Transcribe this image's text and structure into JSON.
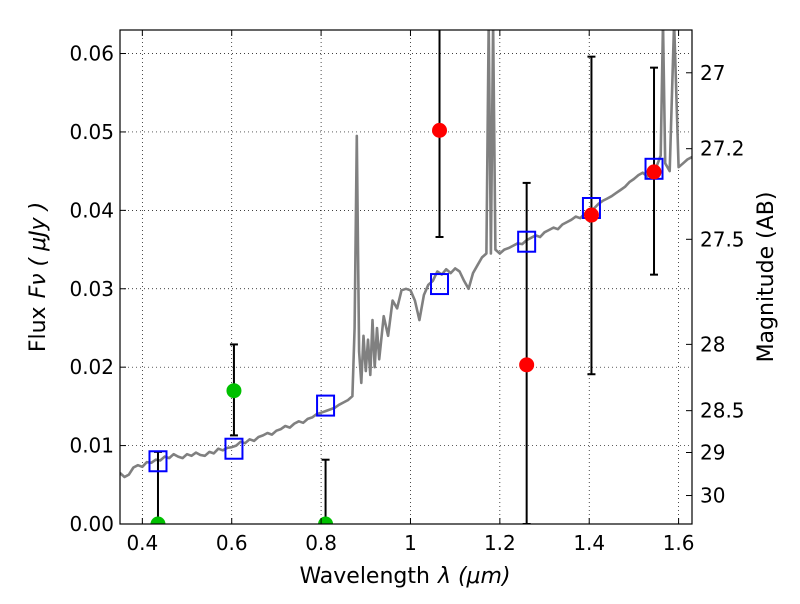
{
  "chart_data": {
    "type": "scatter",
    "title": "",
    "xlabel": "Wavelength",
    "xlabel_math": "λ (μm)",
    "ylabel": "Flux",
    "ylabel_math": "Fν ( μJy )",
    "y2label": "Magnitude (AB)",
    "xlim": [
      0.35,
      1.63
    ],
    "ylim": [
      0.0,
      0.063
    ],
    "grid": true,
    "x_ticks": [
      {
        "value": 0.4,
        "label": "0.4"
      },
      {
        "value": 0.6,
        "label": "0.6"
      },
      {
        "value": 0.8,
        "label": "0.8"
      },
      {
        "value": 1.0,
        "label": "1"
      },
      {
        "value": 1.2,
        "label": "1.2"
      },
      {
        "value": 1.4,
        "label": "1.4"
      },
      {
        "value": 1.6,
        "label": "1.6"
      }
    ],
    "y_ticks": [
      {
        "value": 0.0,
        "label": "0.00"
      },
      {
        "value": 0.01,
        "label": "0.01"
      },
      {
        "value": 0.02,
        "label": "0.02"
      },
      {
        "value": 0.03,
        "label": "0.03"
      },
      {
        "value": 0.04,
        "label": "0.04"
      },
      {
        "value": 0.05,
        "label": "0.05"
      },
      {
        "value": 0.06,
        "label": "0.06"
      }
    ],
    "y2_ticks": [
      {
        "value": 27.0,
        "label": "27"
      },
      {
        "value": 27.2,
        "label": "27.2"
      },
      {
        "value": 27.5,
        "label": "27.5"
      },
      {
        "value": 28.0,
        "label": "28"
      },
      {
        "value": 28.5,
        "label": "28.5"
      },
      {
        "value": 29.0,
        "label": "29"
      },
      {
        "value": 30.0,
        "label": "30"
      }
    ],
    "series": [
      {
        "type": "line",
        "color": "#808080",
        "points": [
          [
            0.35,
            0.0065
          ],
          [
            0.36,
            0.006
          ],
          [
            0.37,
            0.0063
          ],
          [
            0.38,
            0.0072
          ],
          [
            0.39,
            0.0075
          ],
          [
            0.4,
            0.0073
          ],
          [
            0.41,
            0.0079
          ],
          [
            0.42,
            0.0078
          ],
          [
            0.43,
            0.0082
          ],
          [
            0.44,
            0.0081
          ],
          [
            0.45,
            0.0086
          ],
          [
            0.46,
            0.0084
          ],
          [
            0.47,
            0.0089
          ],
          [
            0.48,
            0.0086
          ],
          [
            0.49,
            0.0084
          ],
          [
            0.5,
            0.0089
          ],
          [
            0.51,
            0.0087
          ],
          [
            0.52,
            0.0091
          ],
          [
            0.53,
            0.0088
          ],
          [
            0.54,
            0.0087
          ],
          [
            0.55,
            0.0092
          ],
          [
            0.56,
            0.009
          ],
          [
            0.57,
            0.0096
          ],
          [
            0.58,
            0.0094
          ],
          [
            0.59,
            0.0097
          ],
          [
            0.6,
            0.0098
          ],
          [
            0.61,
            0.01
          ],
          [
            0.62,
            0.0105
          ],
          [
            0.63,
            0.0103
          ],
          [
            0.64,
            0.0108
          ],
          [
            0.65,
            0.0106
          ],
          [
            0.66,
            0.0111
          ],
          [
            0.67,
            0.0113
          ],
          [
            0.68,
            0.0116
          ],
          [
            0.69,
            0.0114
          ],
          [
            0.7,
            0.0119
          ],
          [
            0.71,
            0.0121
          ],
          [
            0.72,
            0.0125
          ],
          [
            0.73,
            0.0123
          ],
          [
            0.74,
            0.0128
          ],
          [
            0.75,
            0.0131
          ],
          [
            0.76,
            0.0129
          ],
          [
            0.77,
            0.0134
          ],
          [
            0.78,
            0.0136
          ],
          [
            0.79,
            0.014
          ],
          [
            0.8,
            0.0142
          ],
          [
            0.81,
            0.0144
          ],
          [
            0.82,
            0.0146
          ],
          [
            0.83,
            0.0148
          ],
          [
            0.84,
            0.0152
          ],
          [
            0.85,
            0.0155
          ],
          [
            0.86,
            0.0158
          ],
          [
            0.87,
            0.0163
          ],
          [
            0.875,
            0.025
          ],
          [
            0.88,
            0.0495
          ],
          [
            0.885,
            0.022
          ],
          [
            0.89,
            0.018
          ],
          [
            0.895,
            0.024
          ],
          [
            0.9,
            0.0195
          ],
          [
            0.905,
            0.0235
          ],
          [
            0.91,
            0.019
          ],
          [
            0.915,
            0.026
          ],
          [
            0.92,
            0.02
          ],
          [
            0.925,
            0.025
          ],
          [
            0.93,
            0.021
          ],
          [
            0.94,
            0.0265
          ],
          [
            0.95,
            0.024
          ],
          [
            0.96,
            0.0285
          ],
          [
            0.97,
            0.0275
          ],
          [
            0.98,
            0.0298
          ],
          [
            0.99,
            0.03
          ],
          [
            1.0,
            0.0298
          ],
          [
            1.01,
            0.0285
          ],
          [
            1.02,
            0.026
          ],
          [
            1.03,
            0.0292
          ],
          [
            1.04,
            0.0305
          ],
          [
            1.05,
            0.031
          ],
          [
            1.06,
            0.0322
          ],
          [
            1.07,
            0.0318
          ],
          [
            1.08,
            0.0325
          ],
          [
            1.09,
            0.032
          ],
          [
            1.1,
            0.0326
          ],
          [
            1.11,
            0.0322
          ],
          [
            1.12,
            0.031
          ],
          [
            1.13,
            0.03
          ],
          [
            1.14,
            0.032
          ],
          [
            1.15,
            0.033
          ],
          [
            1.16,
            0.034
          ],
          [
            1.17,
            0.0345
          ],
          [
            1.175,
            0.064
          ],
          [
            1.18,
            0.0345
          ],
          [
            1.185,
            0.064
          ],
          [
            1.19,
            0.035
          ],
          [
            1.2,
            0.0345
          ],
          [
            1.21,
            0.035
          ],
          [
            1.22,
            0.0352
          ],
          [
            1.23,
            0.0355
          ],
          [
            1.24,
            0.0358
          ],
          [
            1.25,
            0.0357
          ],
          [
            1.26,
            0.0362
          ],
          [
            1.27,
            0.0365
          ],
          [
            1.28,
            0.0368
          ],
          [
            1.29,
            0.0366
          ],
          [
            1.3,
            0.0372
          ],
          [
            1.31,
            0.0375
          ],
          [
            1.32,
            0.0378
          ],
          [
            1.33,
            0.0376
          ],
          [
            1.34,
            0.0382
          ],
          [
            1.35,
            0.0385
          ],
          [
            1.36,
            0.0388
          ],
          [
            1.37,
            0.0392
          ],
          [
            1.38,
            0.039
          ],
          [
            1.39,
            0.0396
          ],
          [
            1.4,
            0.04
          ],
          [
            1.41,
            0.0402
          ],
          [
            1.42,
            0.0408
          ],
          [
            1.43,
            0.0412
          ],
          [
            1.44,
            0.0415
          ],
          [
            1.45,
            0.0418
          ],
          [
            1.46,
            0.0422
          ],
          [
            1.47,
            0.0426
          ],
          [
            1.48,
            0.043
          ],
          [
            1.49,
            0.0436
          ],
          [
            1.5,
            0.044
          ],
          [
            1.51,
            0.0445
          ],
          [
            1.52,
            0.0448
          ],
          [
            1.53,
            0.0443
          ],
          [
            1.54,
            0.045
          ],
          [
            1.55,
            0.0455
          ],
          [
            1.56,
            0.047
          ],
          [
            1.565,
            0.064
          ],
          [
            1.57,
            0.046
          ],
          [
            1.58,
            0.045
          ],
          [
            1.59,
            0.064
          ],
          [
            1.6,
            0.0455
          ],
          [
            1.61,
            0.046
          ],
          [
            1.62,
            0.0465
          ],
          [
            1.63,
            0.0468
          ]
        ]
      },
      {
        "type": "markers",
        "marker": "square-open",
        "color": "#0000ff",
        "x": [
          0.435,
          0.605,
          0.81,
          1.065,
          1.26,
          1.405,
          1.545
        ],
        "y": [
          0.008,
          0.0096,
          0.0151,
          0.0306,
          0.036,
          0.0403,
          0.0453
        ]
      },
      {
        "type": "markers",
        "marker": "circle",
        "color": "#ff0000",
        "x": [
          1.065,
          1.26,
          1.405,
          1.545
        ],
        "y": [
          0.0502,
          0.0203,
          0.0394,
          0.0449
        ],
        "err_low": [
          0.0366,
          0.0,
          0.0191,
          0.0318
        ],
        "err_high": [
          0.064,
          0.0435,
          0.0596,
          0.0582
        ]
      },
      {
        "type": "markers",
        "marker": "circle",
        "color": "#00c000",
        "x": [
          0.435,
          0.605,
          0.81
        ],
        "y": [
          0.0,
          0.017,
          0.0
        ],
        "err_low": [
          0.0,
          0.0113,
          0.0
        ],
        "err_high": [
          0.0092,
          0.0229,
          0.0082
        ]
      }
    ]
  }
}
